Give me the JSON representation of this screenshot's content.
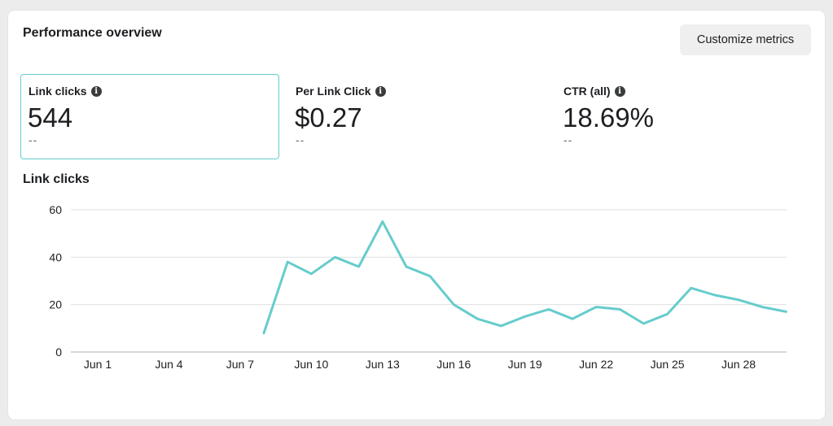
{
  "header": {
    "title": "Performance overview",
    "customize_label": "Customize metrics"
  },
  "metrics": [
    {
      "label": "Link clicks",
      "value": "544",
      "compare": "--",
      "selected": true
    },
    {
      "label": "Per Link Click",
      "value": "$0.27",
      "compare": "--",
      "selected": false
    },
    {
      "label": "CTR (all)",
      "value": "18.69%",
      "compare": "--",
      "selected": false
    }
  ],
  "icons": {
    "info": "info-icon"
  },
  "colors": {
    "accent": "#66cccc",
    "line": "#66cccc",
    "grid": "#e0e0e0"
  },
  "chart_data": {
    "type": "line",
    "title": "Link clicks",
    "x": [
      "Jun 1",
      "Jun 2",
      "Jun 3",
      "Jun 4",
      "Jun 5",
      "Jun 6",
      "Jun 7",
      "Jun 8",
      "Jun 9",
      "Jun 10",
      "Jun 11",
      "Jun 12",
      "Jun 13",
      "Jun 14",
      "Jun 15",
      "Jun 16",
      "Jun 17",
      "Jun 18",
      "Jun 19",
      "Jun 20",
      "Jun 21",
      "Jun 22",
      "Jun 23",
      "Jun 24",
      "Jun 25",
      "Jun 26",
      "Jun 27",
      "Jun 28",
      "Jun 29",
      "Jun 30"
    ],
    "x_ticks": [
      "Jun 1",
      "Jun 4",
      "Jun 7",
      "Jun 10",
      "Jun 13",
      "Jun 16",
      "Jun 19",
      "Jun 22",
      "Jun 25",
      "Jun 28"
    ],
    "series": [
      {
        "values": [
          null,
          null,
          null,
          null,
          null,
          null,
          null,
          8,
          38,
          33,
          40,
          36,
          55,
          36,
          32,
          20,
          14,
          11,
          15,
          18,
          14,
          19,
          18,
          12,
          16,
          27,
          24,
          22,
          19,
          17
        ]
      }
    ],
    "y_ticks": [
      0,
      20,
      40,
      60
    ],
    "ylim": [
      0,
      60
    ],
    "grid": true,
    "legend": "none"
  }
}
